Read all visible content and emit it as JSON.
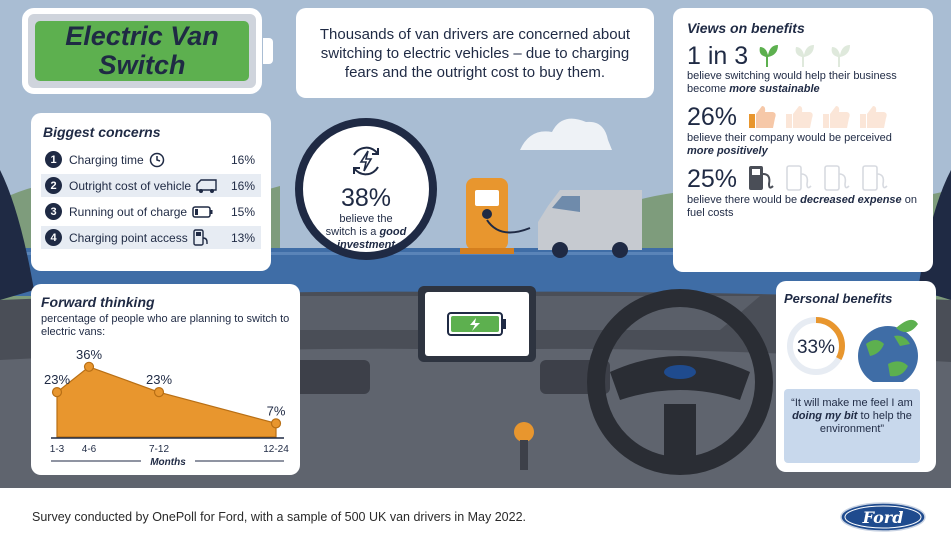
{
  "title": {
    "line1": "Electric Van",
    "line2": "Switch"
  },
  "intro": "Thousands of van drivers are concerned about switching to electric vehicles – due to charging fears and the outright cost to buy them.",
  "concerns": {
    "title": "Biggest concerns",
    "items": [
      {
        "num": "1",
        "label": "Charging time",
        "pct": "16%",
        "icon": "clock-icon"
      },
      {
        "num": "2",
        "label": "Outright cost of vehicle",
        "pct": "16%",
        "icon": "van-icon"
      },
      {
        "num": "3",
        "label": "Running out of charge",
        "pct": "15%",
        "icon": "low-battery-icon"
      },
      {
        "num": "4",
        "label": "Charging point access",
        "pct": "13%",
        "icon": "charger-icon"
      }
    ]
  },
  "good_investment": {
    "pct": "38%",
    "line1": "believe the",
    "line2": "switch is a",
    "emph": "good investment"
  },
  "views": {
    "title": "Views on benefits",
    "items": [
      {
        "stat": "1 in 3",
        "text": "believe switching would help their business become",
        "emph": "more sustainable",
        "icon": "leaf-icon"
      },
      {
        "stat": "26%",
        "text": "believe their company would be perceived",
        "emph": "more positively",
        "icon": "thumbs-up-icon"
      },
      {
        "stat": "25%",
        "text": "believe there would be",
        "emph": "decreased expense",
        "tail": "on fuel costs",
        "icon": "fuel-pump-icon"
      }
    ]
  },
  "forward": {
    "title": "Forward thinking",
    "subtitle": "percentage of people who are planning to switch to electric vans:"
  },
  "chart_data": {
    "type": "area",
    "categories": [
      "1-3",
      "4-6",
      "7-12",
      "12-24"
    ],
    "values": [
      23,
      36,
      23,
      7
    ],
    "value_labels": [
      "23%",
      "36%",
      "23%",
      "7%"
    ],
    "xlabel": "Months",
    "ylabel": "",
    "ylim": [
      0,
      40
    ],
    "grid": false,
    "legend": "none",
    "color": "#e8962e"
  },
  "personal": {
    "title": "Personal benefits",
    "pct": "33%",
    "fraction": 0.33,
    "quote_pre": "“It will make me feel I am",
    "quote_emph": "doing my bit",
    "quote_post": "to help the environment”"
  },
  "footnote": "Survey conducted by OnePoll for Ford, with a sample of 500 UK van drivers in May 2022.",
  "logo_text": "Ford",
  "colors": {
    "navy": "#1f2a44",
    "green": "#5db04f",
    "orange": "#e8962e",
    "sky": "#a9bdd3",
    "sea": "#3f6da6"
  }
}
